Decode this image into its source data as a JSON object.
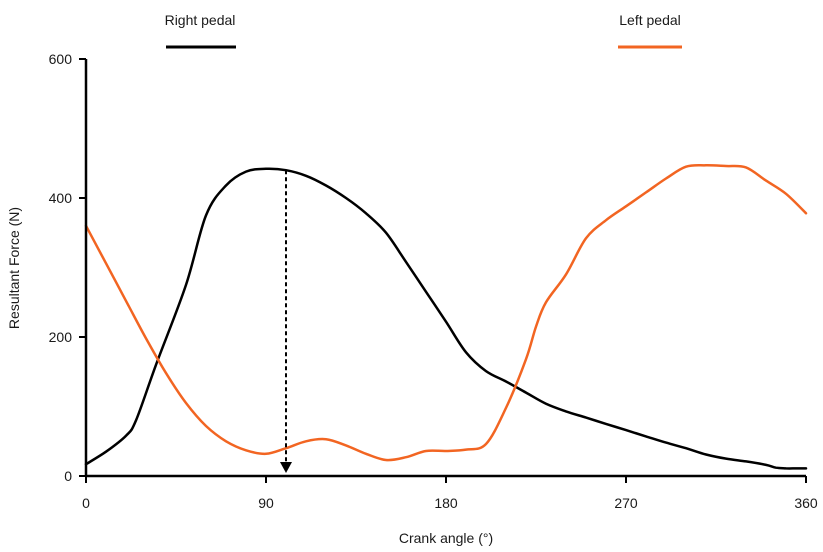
{
  "chart_data": {
    "type": "line",
    "title": "",
    "xlabel": "Crank angle (°)",
    "ylabel": "Resultant Force (N)",
    "xlim": [
      0,
      360
    ],
    "ylim": [
      0,
      600
    ],
    "x_ticks": [
      0,
      90,
      180,
      270,
      360
    ],
    "y_ticks": [
      0,
      200,
      400,
      600
    ],
    "grid": false,
    "legend_position": "top",
    "series": [
      {
        "name": "Right pedal",
        "color": "#000000",
        "x": [
          0,
          10,
          20,
          25,
          35,
          50,
          60,
          70,
          80,
          90,
          100,
          110,
          120,
          130,
          140,
          150,
          160,
          170,
          180,
          190,
          200,
          210,
          220,
          230,
          240,
          250,
          260,
          270,
          280,
          290,
          300,
          310,
          320,
          330,
          340,
          345,
          350,
          355,
          360
        ],
        "values": [
          17,
          35,
          58,
          80,
          160,
          275,
          375,
          418,
          438,
          442,
          440,
          432,
          418,
          400,
          378,
          350,
          308,
          265,
          222,
          178,
          151,
          136,
          120,
          104,
          93,
          84,
          75,
          66,
          57,
          48,
          40,
          31,
          25,
          21,
          16,
          12,
          11,
          11,
          11
        ],
        "peak_marker_x": 100
      },
      {
        "name": "Left pedal",
        "color": "#f26522",
        "x": [
          0,
          10,
          20,
          30,
          40,
          50,
          60,
          70,
          80,
          90,
          100,
          110,
          120,
          130,
          140,
          150,
          160,
          170,
          180,
          190,
          200,
          210,
          220,
          225,
          230,
          240,
          250,
          260,
          270,
          280,
          290,
          300,
          310,
          320,
          330,
          340,
          350,
          360
        ],
        "values": [
          360,
          306,
          252,
          198,
          148,
          105,
          72,
          50,
          37,
          32,
          40,
          50,
          53,
          44,
          32,
          23,
          27,
          36,
          36,
          38,
          46,
          98,
          168,
          215,
          250,
          290,
          342,
          368,
          388,
          408,
          428,
          445,
          447,
          446,
          444,
          425,
          406,
          378
        ]
      }
    ]
  }
}
